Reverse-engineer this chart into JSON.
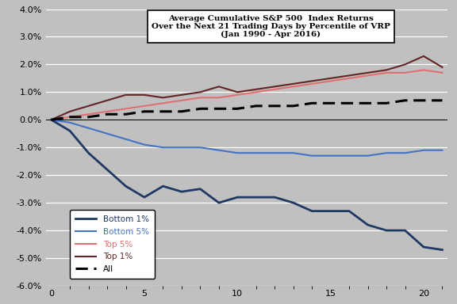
{
  "title_line1": "Average Cumulative S&P 500  Index Returns",
  "title_line2": "Over the Next 21 Trading Days by Percentile of VRP",
  "title_line3": "(Jan 1990 - Apr 2016)",
  "x": [
    0,
    1,
    2,
    3,
    4,
    5,
    6,
    7,
    8,
    9,
    10,
    11,
    12,
    13,
    14,
    15,
    16,
    17,
    18,
    19,
    20,
    21
  ],
  "bottom1": [
    0.0,
    -0.004,
    -0.012,
    -0.018,
    -0.024,
    -0.028,
    -0.024,
    -0.026,
    -0.025,
    -0.03,
    -0.028,
    -0.028,
    -0.028,
    -0.03,
    -0.033,
    -0.033,
    -0.033,
    -0.038,
    -0.04,
    -0.04,
    -0.046,
    -0.047
  ],
  "bottom5": [
    0.0,
    -0.001,
    -0.003,
    -0.005,
    -0.007,
    -0.009,
    -0.01,
    -0.01,
    -0.01,
    -0.011,
    -0.012,
    -0.012,
    -0.012,
    -0.012,
    -0.013,
    -0.013,
    -0.013,
    -0.013,
    -0.012,
    -0.012,
    -0.011,
    -0.011
  ],
  "top5": [
    0.0,
    0.001,
    0.002,
    0.003,
    0.004,
    0.005,
    0.006,
    0.007,
    0.008,
    0.008,
    0.009,
    0.01,
    0.011,
    0.012,
    0.013,
    0.014,
    0.015,
    0.016,
    0.017,
    0.017,
    0.018,
    0.017
  ],
  "top1": [
    0.0,
    0.003,
    0.005,
    0.007,
    0.009,
    0.009,
    0.008,
    0.009,
    0.01,
    0.012,
    0.01,
    0.011,
    0.012,
    0.013,
    0.014,
    0.015,
    0.016,
    0.017,
    0.018,
    0.02,
    0.023,
    0.019
  ],
  "all": [
    0.0,
    0.001,
    0.001,
    0.002,
    0.002,
    0.003,
    0.003,
    0.003,
    0.004,
    0.004,
    0.004,
    0.005,
    0.005,
    0.005,
    0.006,
    0.006,
    0.006,
    0.006,
    0.006,
    0.007,
    0.007,
    0.007
  ],
  "color_bottom1": "#1F3864",
  "color_bottom5": "#4472C4",
  "color_top5": "#E07070",
  "color_top1": "#632523",
  "color_all": "#000000",
  "bg_color": "#C0C0C0",
  "ylim": [
    -0.06,
    0.04
  ],
  "yticks": [
    -0.06,
    -0.05,
    -0.04,
    -0.03,
    -0.02,
    -0.01,
    0.0,
    0.01,
    0.02,
    0.03,
    0.04
  ],
  "xticks": [
    0,
    5,
    10,
    15,
    20
  ]
}
